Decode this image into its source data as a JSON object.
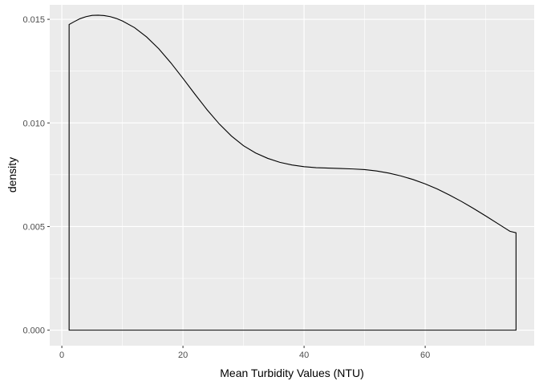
{
  "chart_data": {
    "type": "area",
    "title": "",
    "xlabel": "Mean Turbidity Values (NTU)",
    "ylabel": "density",
    "xlim": [
      -2,
      78
    ],
    "ylim": [
      -0.00075,
      0.0157
    ],
    "x_ticks": [
      0,
      20,
      40,
      60
    ],
    "x_tick_labels": [
      "0",
      "20",
      "40",
      "60"
    ],
    "y_ticks": [
      0.0,
      0.005,
      0.01,
      0.015
    ],
    "y_tick_labels": [
      "0.000",
      "0.005",
      "0.010",
      "0.015"
    ],
    "grid": true,
    "legend": "none",
    "series": [
      {
        "x": [
          1.2,
          2,
          3,
          4,
          5,
          6,
          7,
          8,
          9,
          10,
          12,
          14,
          16,
          18,
          20,
          22,
          24,
          26,
          28,
          30,
          32,
          34,
          36,
          38,
          40,
          42,
          44,
          46,
          48,
          50,
          52,
          54,
          56,
          58,
          60,
          62,
          64,
          66,
          68,
          70,
          72,
          74,
          75
        ],
        "y": [
          0.01475,
          0.01488,
          0.01503,
          0.01513,
          0.01519,
          0.0152,
          0.01518,
          0.01513,
          0.01504,
          0.01492,
          0.0146,
          0.01415,
          0.01358,
          0.0129,
          0.01215,
          0.01138,
          0.01063,
          0.00995,
          0.00937,
          0.0089,
          0.00855,
          0.00829,
          0.0081,
          0.00797,
          0.00789,
          0.00784,
          0.00782,
          0.0078,
          0.00778,
          0.00775,
          0.00768,
          0.00758,
          0.00744,
          0.00727,
          0.00706,
          0.00681,
          0.00652,
          0.00621,
          0.00587,
          0.00551,
          0.00514,
          0.00477,
          0.0047
        ]
      }
    ]
  },
  "colors": {
    "panel_background": "#ebebeb",
    "grid_major": "#ffffff",
    "line": "#000000",
    "tick_text": "#4d4d4d"
  }
}
